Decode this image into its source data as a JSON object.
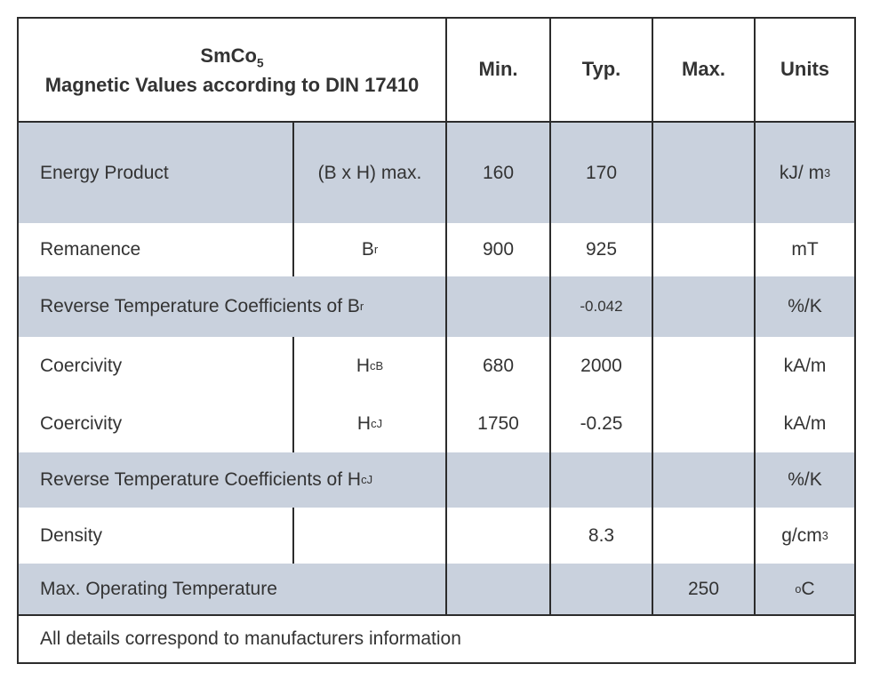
{
  "title": {
    "line1_base": "SmCo",
    "line1_sub": "5",
    "line2": "Magnetic Values according to DIN 17410"
  },
  "columns": {
    "min": "Min.",
    "typ": "Typ.",
    "max": "Max.",
    "units": "Units"
  },
  "rows": [
    {
      "name": "Energy Product",
      "symbol_base": "(B x H) max.",
      "symbol_sub": "",
      "min": "160",
      "typ": "170",
      "max": "",
      "unit_base": "kJ/ m",
      "unit_sup": "3"
    },
    {
      "name": "Remanence",
      "symbol_base": "B",
      "symbol_sub": "r",
      "min": "900",
      "typ": "925",
      "max": "",
      "unit_base": "mT",
      "unit_sup": ""
    },
    {
      "name_base": "Reverse Temperature Coefficients of B",
      "name_sub": "r",
      "min": "",
      "typ": "-0.042",
      "max": "",
      "unit_base": "%/K",
      "unit_sup": ""
    },
    {
      "name": "Coercivity",
      "symbol_base": "H",
      "symbol_sub": "cB",
      "min": "680",
      "typ": "2000",
      "max": "",
      "unit_base": "kA/m",
      "unit_sup": ""
    },
    {
      "name": "Coercivity",
      "symbol_base": "H",
      "symbol_sub": "cJ",
      "min": "1750",
      "typ": "-0.25",
      "max": "",
      "unit_base": "kA/m",
      "unit_sup": ""
    },
    {
      "name_base": "Reverse Temperature Coefficients of H",
      "name_sub": "cJ",
      "min": "",
      "typ": "",
      "max": "",
      "unit_base": "%/K",
      "unit_sup": ""
    },
    {
      "name": "Density",
      "symbol_base": "",
      "symbol_sub": "",
      "min": "",
      "typ": "8.3",
      "max": "",
      "unit_base": "g/cm",
      "unit_sup": "3"
    },
    {
      "name": "Max. Operating Temperature",
      "min": "",
      "typ": "",
      "max": "250",
      "unit_presup": "o",
      "unit_base": "C"
    }
  ],
  "footer": "All details correspond to manufacturers information",
  "colors": {
    "shaded_row": "#c9d1dd",
    "border": "#2c2c2c",
    "text": "#333333",
    "background": "#ffffff"
  }
}
